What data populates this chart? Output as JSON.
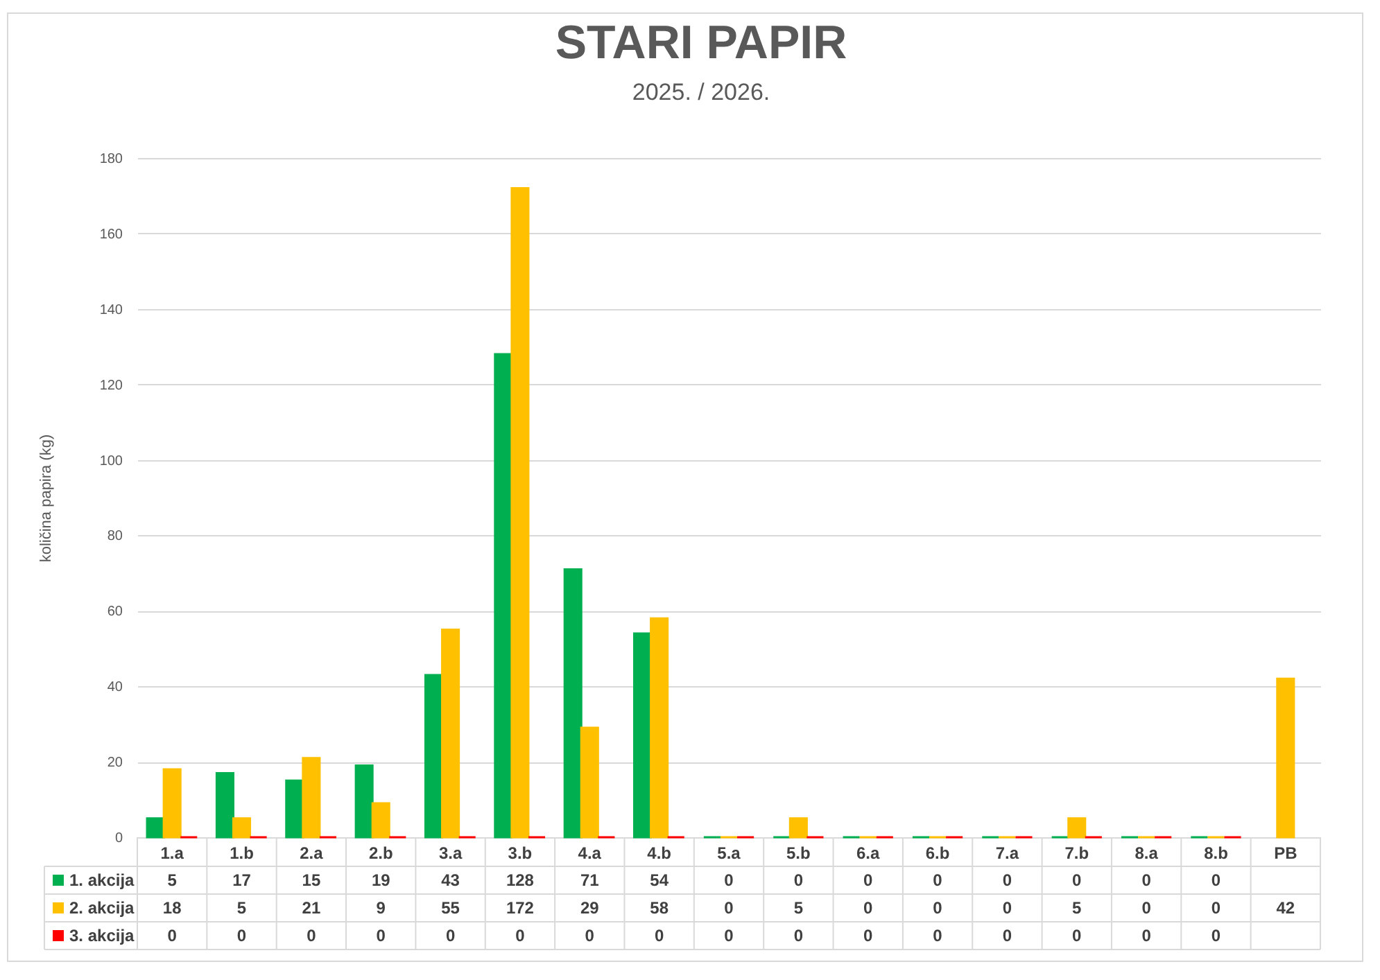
{
  "chart_data": {
    "type": "bar",
    "title": "STARI PAPIR",
    "subtitle": "2025. / 2026.",
    "ylabel": "količina papira (kg)",
    "categories": [
      "1.a",
      "1.b",
      "2.a",
      "2.b",
      "3.a",
      "3.b",
      "4.a",
      "4.b",
      "5.a",
      "5.b",
      "6.a",
      "6.b",
      "7.a",
      "7.b",
      "8.a",
      "8.b",
      "PB"
    ],
    "series": [
      {
        "name": "1. akcija",
        "color": "#00b050",
        "values": [
          5,
          17,
          15,
          19,
          43,
          128,
          71,
          54,
          0,
          0,
          0,
          0,
          0,
          0,
          0,
          0,
          null
        ]
      },
      {
        "name": "2. akcija",
        "color": "#ffc000",
        "values": [
          18,
          5,
          21,
          9,
          55,
          172,
          29,
          58,
          0,
          5,
          0,
          0,
          0,
          5,
          0,
          0,
          42
        ]
      },
      {
        "name": "3. akcija",
        "color": "#ff0000",
        "values": [
          0,
          0,
          0,
          0,
          0,
          0,
          0,
          0,
          0,
          0,
          0,
          0,
          0,
          0,
          0,
          0,
          null
        ]
      }
    ],
    "ylim": [
      0,
      180
    ],
    "yticks": [
      0,
      20,
      40,
      60,
      80,
      100,
      120,
      140,
      160,
      180
    ],
    "grid": "y",
    "legend": "bottom left",
    "data_labels": true
  }
}
